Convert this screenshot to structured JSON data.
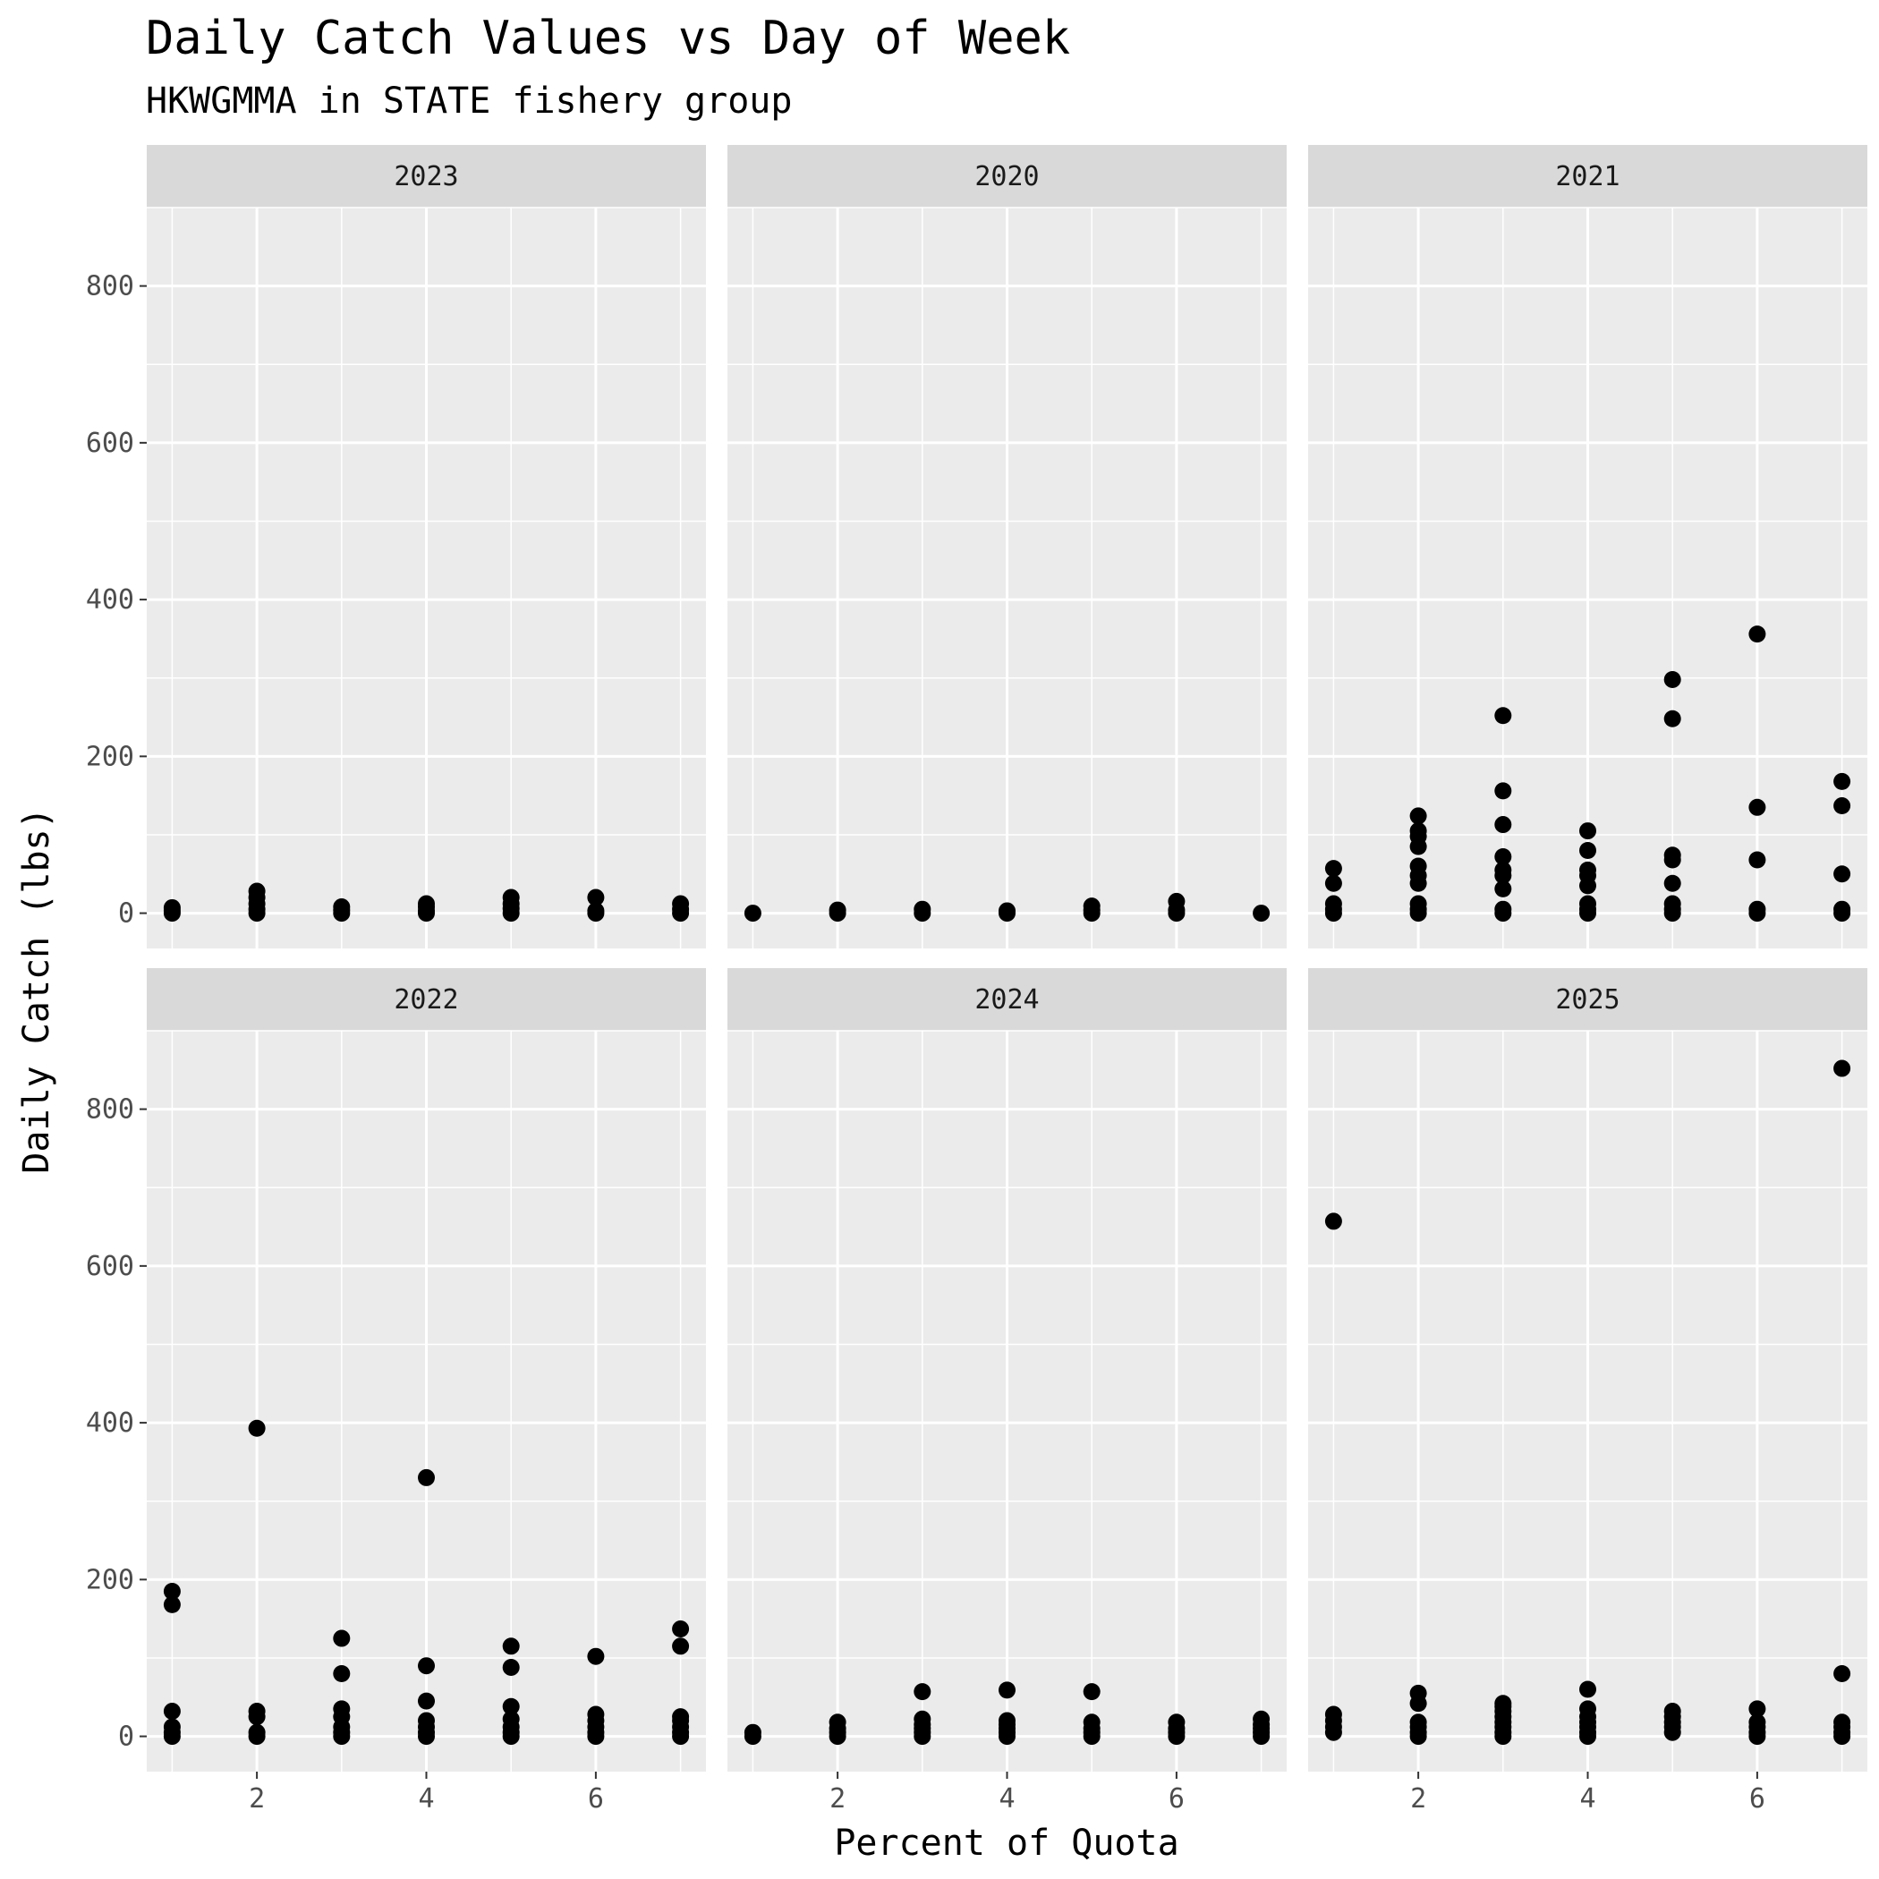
{
  "chart_data": {
    "type": "scatter",
    "title": "Daily Catch Values vs Day of Week",
    "subtitle": "HKWGMMA in STATE fishery group",
    "xlabel": "Percent of Quota",
    "ylabel": "Daily Catch (lbs)",
    "xlim": [
      0.7,
      7.3
    ],
    "ylim": [
      -45,
      900
    ],
    "x_ticks": [
      2,
      4,
      6
    ],
    "y_ticks": [
      0,
      200,
      400,
      600,
      800
    ],
    "grid": true,
    "point_color": "#000000",
    "panel_background": "#ebebeb",
    "strip_background": "#d9d9d9",
    "panels": [
      {
        "label": "2023",
        "points": [
          [
            1,
            0
          ],
          [
            1,
            3
          ],
          [
            1,
            7
          ],
          [
            2,
            0
          ],
          [
            2,
            5
          ],
          [
            2,
            12
          ],
          [
            2,
            20
          ],
          [
            2,
            28
          ],
          [
            3,
            0
          ],
          [
            3,
            4
          ],
          [
            3,
            8
          ],
          [
            4,
            0
          ],
          [
            4,
            3
          ],
          [
            4,
            8
          ],
          [
            4,
            12
          ],
          [
            5,
            0
          ],
          [
            5,
            6
          ],
          [
            5,
            12
          ],
          [
            5,
            20
          ],
          [
            6,
            0
          ],
          [
            6,
            3
          ],
          [
            6,
            20
          ],
          [
            7,
            0
          ],
          [
            7,
            5
          ],
          [
            7,
            12
          ]
        ]
      },
      {
        "label": "2020",
        "points": [
          [
            1,
            0
          ],
          [
            2,
            0
          ],
          [
            2,
            4
          ],
          [
            3,
            0
          ],
          [
            3,
            5
          ],
          [
            4,
            0
          ],
          [
            4,
            3
          ],
          [
            5,
            0
          ],
          [
            5,
            4
          ],
          [
            5,
            9
          ],
          [
            6,
            0
          ],
          [
            6,
            4
          ],
          [
            6,
            15
          ],
          [
            7,
            0
          ]
        ]
      },
      {
        "label": "2021",
        "points": [
          [
            1,
            0
          ],
          [
            1,
            5
          ],
          [
            1,
            12
          ],
          [
            1,
            38
          ],
          [
            1,
            57
          ],
          [
            2,
            0
          ],
          [
            2,
            5
          ],
          [
            2,
            12
          ],
          [
            2,
            38
          ],
          [
            2,
            48
          ],
          [
            2,
            60
          ],
          [
            2,
            85
          ],
          [
            2,
            98
          ],
          [
            2,
            105
          ],
          [
            2,
            124
          ],
          [
            3,
            0
          ],
          [
            3,
            5
          ],
          [
            3,
            31
          ],
          [
            3,
            48
          ],
          [
            3,
            55
          ],
          [
            3,
            72
          ],
          [
            3,
            113
          ],
          [
            3,
            156
          ],
          [
            3,
            252
          ],
          [
            4,
            0
          ],
          [
            4,
            5
          ],
          [
            4,
            12
          ],
          [
            4,
            35
          ],
          [
            4,
            48
          ],
          [
            4,
            55
          ],
          [
            4,
            80
          ],
          [
            4,
            105
          ],
          [
            5,
            0
          ],
          [
            5,
            5
          ],
          [
            5,
            12
          ],
          [
            5,
            38
          ],
          [
            5,
            68
          ],
          [
            5,
            74
          ],
          [
            5,
            248
          ],
          [
            5,
            298
          ],
          [
            6,
            0
          ],
          [
            6,
            5
          ],
          [
            6,
            68
          ],
          [
            6,
            135
          ],
          [
            6,
            356
          ],
          [
            7,
            0
          ],
          [
            7,
            5
          ],
          [
            7,
            50
          ],
          [
            7,
            137
          ],
          [
            7,
            168
          ]
        ]
      },
      {
        "label": "2022",
        "points": [
          [
            1,
            0
          ],
          [
            1,
            5
          ],
          [
            1,
            12
          ],
          [
            1,
            32
          ],
          [
            1,
            168
          ],
          [
            1,
            185
          ],
          [
            2,
            0
          ],
          [
            2,
            5
          ],
          [
            2,
            25
          ],
          [
            2,
            32
          ],
          [
            2,
            393
          ],
          [
            3,
            0
          ],
          [
            3,
            5
          ],
          [
            3,
            12
          ],
          [
            3,
            25
          ],
          [
            3,
            35
          ],
          [
            3,
            80
          ],
          [
            3,
            125
          ],
          [
            4,
            0
          ],
          [
            4,
            5
          ],
          [
            4,
            12
          ],
          [
            4,
            20
          ],
          [
            4,
            45
          ],
          [
            4,
            90
          ],
          [
            4,
            330
          ],
          [
            5,
            0
          ],
          [
            5,
            5
          ],
          [
            5,
            12
          ],
          [
            5,
            22
          ],
          [
            5,
            38
          ],
          [
            5,
            88
          ],
          [
            5,
            115
          ],
          [
            6,
            0
          ],
          [
            6,
            5
          ],
          [
            6,
            12
          ],
          [
            6,
            20
          ],
          [
            6,
            28
          ],
          [
            6,
            102
          ],
          [
            7,
            0
          ],
          [
            7,
            5
          ],
          [
            7,
            12
          ],
          [
            7,
            20
          ],
          [
            7,
            25
          ],
          [
            7,
            115
          ],
          [
            7,
            137
          ]
        ]
      },
      {
        "label": "2024",
        "points": [
          [
            1,
            0
          ],
          [
            1,
            5
          ],
          [
            2,
            0
          ],
          [
            2,
            5
          ],
          [
            2,
            10
          ],
          [
            2,
            18
          ],
          [
            3,
            0
          ],
          [
            3,
            5
          ],
          [
            3,
            10
          ],
          [
            3,
            15
          ],
          [
            3,
            22
          ],
          [
            3,
            57
          ],
          [
            4,
            0
          ],
          [
            4,
            5
          ],
          [
            4,
            10
          ],
          [
            4,
            15
          ],
          [
            4,
            20
          ],
          [
            4,
            59
          ],
          [
            5,
            0
          ],
          [
            5,
            5
          ],
          [
            5,
            10
          ],
          [
            5,
            18
          ],
          [
            5,
            57
          ],
          [
            6,
            0
          ],
          [
            6,
            5
          ],
          [
            6,
            10
          ],
          [
            6,
            18
          ],
          [
            7,
            0
          ],
          [
            7,
            5
          ],
          [
            7,
            10
          ],
          [
            7,
            15
          ],
          [
            7,
            22
          ]
        ]
      },
      {
        "label": "2025",
        "points": [
          [
            1,
            5
          ],
          [
            1,
            12
          ],
          [
            1,
            20
          ],
          [
            1,
            28
          ],
          [
            1,
            657
          ],
          [
            2,
            0
          ],
          [
            2,
            5
          ],
          [
            2,
            12
          ],
          [
            2,
            18
          ],
          [
            2,
            42
          ],
          [
            2,
            55
          ],
          [
            3,
            0
          ],
          [
            3,
            5
          ],
          [
            3,
            12
          ],
          [
            3,
            18
          ],
          [
            3,
            25
          ],
          [
            3,
            32
          ],
          [
            3,
            38
          ],
          [
            3,
            42
          ],
          [
            4,
            0
          ],
          [
            4,
            5
          ],
          [
            4,
            12
          ],
          [
            4,
            18
          ],
          [
            4,
            25
          ],
          [
            4,
            35
          ],
          [
            4,
            60
          ],
          [
            5,
            5
          ],
          [
            5,
            12
          ],
          [
            5,
            18
          ],
          [
            5,
            25
          ],
          [
            5,
            32
          ],
          [
            6,
            0
          ],
          [
            6,
            5
          ],
          [
            6,
            12
          ],
          [
            6,
            18
          ],
          [
            6,
            35
          ],
          [
            7,
            0
          ],
          [
            7,
            5
          ],
          [
            7,
            12
          ],
          [
            7,
            18
          ],
          [
            7,
            80
          ],
          [
            7,
            852
          ]
        ]
      }
    ]
  }
}
